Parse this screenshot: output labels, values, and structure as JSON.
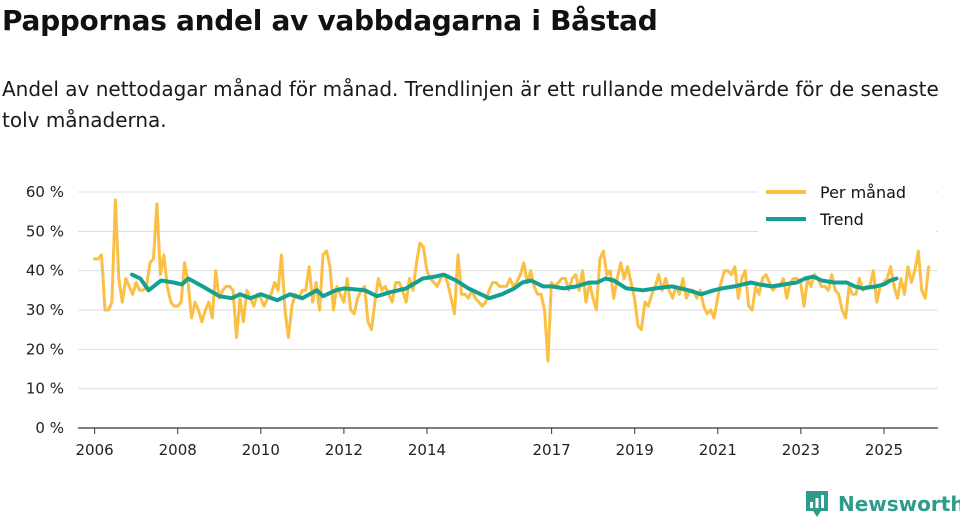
{
  "title": "Pappornas andel av vabbdagarna i Båstad",
  "subtitle": "Andel av nettodagar månad för månad. Trendlinjen är ett rullande medelvärde för de senaste tolv månaderna.",
  "brand": "Newsworthy",
  "colors": {
    "monthly": "#fbbf44",
    "trend": "#14a090",
    "grid": "#dddddd",
    "axis": "#333333",
    "brand": "#2f9b8c"
  },
  "chart_data": {
    "type": "line",
    "title": "Pappornas andel av vabbdagarna i Båstad",
    "xlabel": "",
    "ylabel": "",
    "x_range": [
      2005.6,
      2026.3
    ],
    "ylim": [
      0,
      60
    ],
    "y_ticks": [
      0,
      10,
      20,
      30,
      40,
      50,
      60
    ],
    "y_tick_labels": [
      "0 %",
      "10 %",
      "20 %",
      "30 %",
      "40 %",
      "50 %",
      "60 %"
    ],
    "x_ticks": [
      2006,
      2008,
      2010,
      2012,
      2014,
      2017,
      2019,
      2021,
      2023,
      2025
    ],
    "x_tick_labels": [
      "2006",
      "2008",
      "2010",
      "2012",
      "2014",
      "2017",
      "2019",
      "2021",
      "2023",
      "2025"
    ],
    "legend": {
      "position": "top-right",
      "entries": [
        "Per månad",
        "Trend"
      ]
    },
    "series": [
      {
        "name": "Per månad",
        "x_start": 2006.0,
        "step": 0.0833,
        "values": [
          43,
          43,
          44,
          30,
          30,
          32,
          58,
          38,
          32,
          38,
          36,
          34,
          37,
          35,
          35,
          36,
          42,
          43,
          57,
          39,
          44,
          36,
          32,
          31,
          31,
          32,
          42,
          37,
          28,
          32,
          30,
          27,
          30,
          32,
          28,
          40,
          33,
          35,
          36,
          36,
          35,
          23,
          33,
          27,
          35,
          33,
          31,
          34,
          33,
          31,
          33,
          34,
          37,
          35,
          44,
          30,
          23,
          31,
          34,
          33,
          35,
          35,
          41,
          32,
          37,
          30,
          44,
          45,
          41,
          30,
          36,
          34,
          32,
          38,
          30,
          29,
          33,
          35,
          36,
          27,
          25,
          32,
          38,
          35,
          36,
          34,
          32,
          37,
          37,
          35,
          32,
          38,
          35,
          42,
          47,
          46,
          40,
          38,
          37,
          36,
          38,
          39,
          37,
          33,
          29,
          44,
          34,
          34,
          33,
          35,
          33,
          32,
          31,
          32,
          35,
          37,
          37,
          36,
          36,
          36,
          38,
          36,
          37,
          39,
          42,
          37,
          40,
          36,
          34,
          34,
          30,
          17,
          37,
          36,
          37,
          38,
          38,
          35,
          38,
          39,
          35,
          40,
          32,
          37,
          33,
          30,
          43,
          45,
          39,
          40,
          33,
          38,
          42,
          38,
          41,
          37,
          33,
          26,
          25,
          32,
          31,
          34,
          36,
          39,
          35,
          38,
          35,
          33,
          36,
          34,
          38,
          33,
          35,
          35,
          33,
          35,
          31,
          29,
          30,
          28,
          33,
          37,
          40,
          40,
          39,
          41,
          33,
          38,
          40,
          31,
          30,
          36,
          34,
          38,
          39,
          37,
          35,
          36,
          36,
          38,
          33,
          37,
          38,
          38,
          37,
          31,
          38,
          36,
          39,
          38,
          36,
          36,
          35,
          39,
          35,
          34,
          30,
          28,
          36,
          34,
          34,
          38,
          35,
          36,
          36,
          40,
          32,
          36,
          37,
          38,
          41,
          36,
          33,
          38,
          34,
          41,
          37,
          40,
          45,
          35,
          33,
          41
        ]
      },
      {
        "name": "Trend",
        "points": [
          [
            2006.9,
            39
          ],
          [
            2007.1,
            38
          ],
          [
            2007.3,
            35
          ],
          [
            2007.6,
            37.5
          ],
          [
            2007.9,
            37
          ],
          [
            2008.1,
            36.5
          ],
          [
            2008.25,
            38
          ],
          [
            2008.6,
            36
          ],
          [
            2009.0,
            33.5
          ],
          [
            2009.3,
            33
          ],
          [
            2009.5,
            34
          ],
          [
            2009.75,
            33
          ],
          [
            2010.0,
            34
          ],
          [
            2010.4,
            32.5
          ],
          [
            2010.7,
            34
          ],
          [
            2011.0,
            33
          ],
          [
            2011.35,
            35
          ],
          [
            2011.5,
            33.5
          ],
          [
            2011.8,
            35
          ],
          [
            2012.0,
            35.5
          ],
          [
            2012.5,
            35
          ],
          [
            2012.8,
            33.5
          ],
          [
            2013.1,
            34.5
          ],
          [
            2013.5,
            35.5
          ],
          [
            2013.9,
            38
          ],
          [
            2014.2,
            38.5
          ],
          [
            2014.4,
            39
          ],
          [
            2014.7,
            37.5
          ],
          [
            2015.0,
            35.5
          ],
          [
            2015.3,
            34
          ],
          [
            2015.5,
            33
          ],
          [
            2015.8,
            34
          ],
          [
            2016.1,
            35.5
          ],
          [
            2016.3,
            37
          ],
          [
            2016.5,
            37.5
          ],
          [
            2016.8,
            36
          ],
          [
            2017.0,
            36
          ],
          [
            2017.3,
            35.5
          ],
          [
            2017.6,
            36
          ],
          [
            2017.9,
            37
          ],
          [
            2018.1,
            37
          ],
          [
            2018.3,
            38
          ],
          [
            2018.5,
            37.5
          ],
          [
            2018.8,
            35.5
          ],
          [
            2019.2,
            35
          ],
          [
            2019.5,
            35.5
          ],
          [
            2019.9,
            36
          ],
          [
            2020.3,
            35
          ],
          [
            2020.6,
            34
          ],
          [
            2020.9,
            35
          ],
          [
            2021.1,
            35.5
          ],
          [
            2021.4,
            36
          ],
          [
            2021.6,
            36.5
          ],
          [
            2021.8,
            37
          ],
          [
            2022.0,
            36.5
          ],
          [
            2022.3,
            36
          ],
          [
            2022.6,
            36.5
          ],
          [
            2022.9,
            37
          ],
          [
            2023.1,
            38
          ],
          [
            2023.3,
            38.5
          ],
          [
            2023.5,
            37.5
          ],
          [
            2023.8,
            37
          ],
          [
            2024.1,
            37
          ],
          [
            2024.3,
            36
          ],
          [
            2024.5,
            35.5
          ],
          [
            2024.8,
            36
          ],
          [
            2025.0,
            36.5
          ],
          [
            2025.15,
            37.5
          ],
          [
            2025.3,
            38
          ]
        ]
      }
    ]
  }
}
